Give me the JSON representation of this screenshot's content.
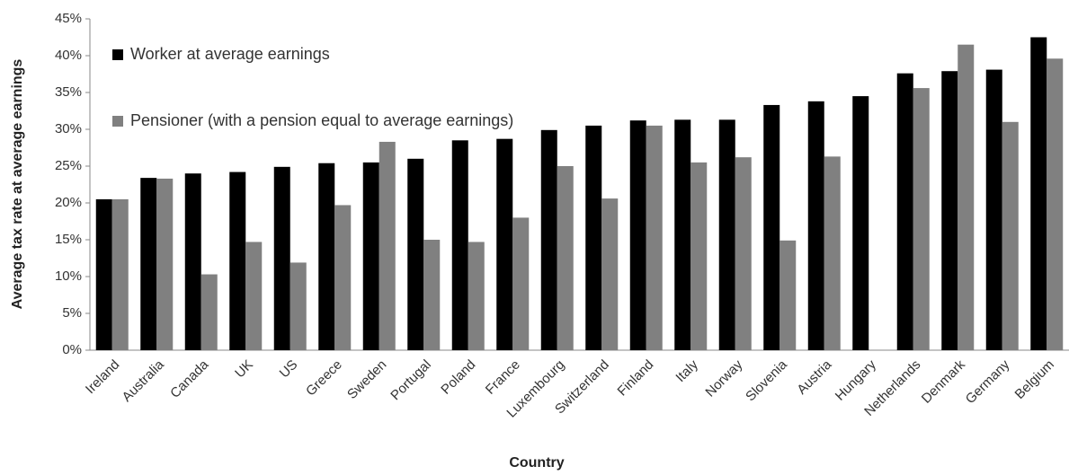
{
  "chart_data": {
    "type": "bar",
    "x_label": "Country",
    "y_label": "Average tax rate at average earnings",
    "categories": [
      "Ireland",
      "Australia",
      "Canada",
      "UK",
      "US",
      "Greece",
      "Sweden",
      "Portugal",
      "Poland",
      "France",
      "Luxembourg",
      "Switzerland",
      "Finland",
      "Italy",
      "Norway",
      "Slovenia",
      "Austria",
      "Hungary",
      "Netherlands",
      "Denmark",
      "Germany",
      "Belgium"
    ],
    "series": [
      {
        "name": "Worker at average earnings",
        "color": "#000000",
        "values": [
          20.5,
          23.4,
          24.0,
          24.2,
          24.9,
          25.4,
          25.5,
          26.0,
          28.5,
          28.7,
          29.9,
          30.5,
          31.2,
          31.3,
          31.3,
          33.3,
          33.8,
          34.5,
          37.6,
          37.9,
          38.1,
          42.5
        ]
      },
      {
        "name": "Pensioner (with a pension equal to average earnings)",
        "color": "#808080",
        "values": [
          20.5,
          23.3,
          10.3,
          14.7,
          11.9,
          19.7,
          28.3,
          15.0,
          14.7,
          18.0,
          25.0,
          20.6,
          30.5,
          25.5,
          26.2,
          14.9,
          26.3,
          null,
          35.6,
          41.5,
          31.0,
          39.6
        ]
      }
    ],
    "ylim": [
      0,
      45
    ],
    "yticks": [
      {
        "value": 0,
        "label": "0%"
      },
      {
        "value": 5,
        "label": "5%"
      },
      {
        "value": 10,
        "label": "10%"
      },
      {
        "value": 15,
        "label": "15%"
      },
      {
        "value": 20,
        "label": "20%"
      },
      {
        "value": 25,
        "label": "25%"
      },
      {
        "value": 30,
        "label": "30%"
      },
      {
        "value": 35,
        "label": "35%"
      },
      {
        "value": 40,
        "label": "40%"
      },
      {
        "value": 45,
        "label": "45%"
      }
    ],
    "grid": false,
    "legend": "upper-left"
  }
}
